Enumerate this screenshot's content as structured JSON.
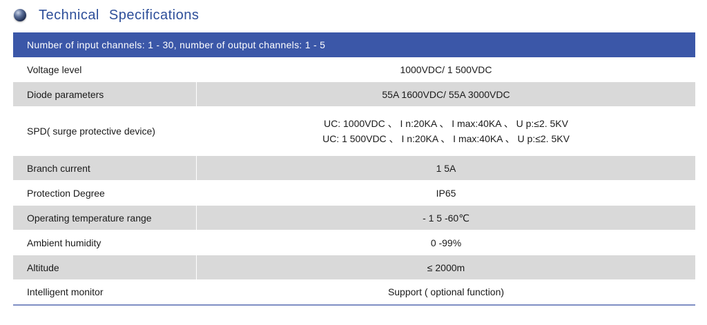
{
  "heading": {
    "title": "Technical Specifications"
  },
  "header_bar": "Number of input channels: 1 - 30, number of output channels: 1 - 5",
  "rows": [
    {
      "label": "Voltage level",
      "values": [
        "1000VDC/ 1 500VDC"
      ]
    },
    {
      "label": "Diode parameters",
      "values": [
        "55A 1600VDC/ 55A 3000VDC"
      ]
    },
    {
      "label": "SPD( surge protective device)",
      "values": [
        "UC: 1000VDC 、 I n:20KA 、 I max:40KA 、 U p:≤2. 5KV",
        "UC: 1 500VDC 、 I n:20KA 、 I max:40KA 、 U p:≤2. 5KV"
      ]
    },
    {
      "label": "Branch current",
      "values": [
        "1 5A"
      ]
    },
    {
      "label": "Protection Degree",
      "values": [
        "IP65"
      ]
    },
    {
      "label": "Operating temperature range",
      "values": [
        "- 1 5 -60℃"
      ]
    },
    {
      "label": "Ambient humidity",
      "values": [
        "0 -99%"
      ]
    },
    {
      "label": "Altitude",
      "values": [
        "≤ 2000m"
      ]
    },
    {
      "label": "Intelligent monitor",
      "values": [
        "Support ( optional function)"
      ]
    }
  ],
  "colors": {
    "accent": "#3b57a8",
    "title": "#2e4f9a",
    "shade": "#d9d9d9"
  }
}
